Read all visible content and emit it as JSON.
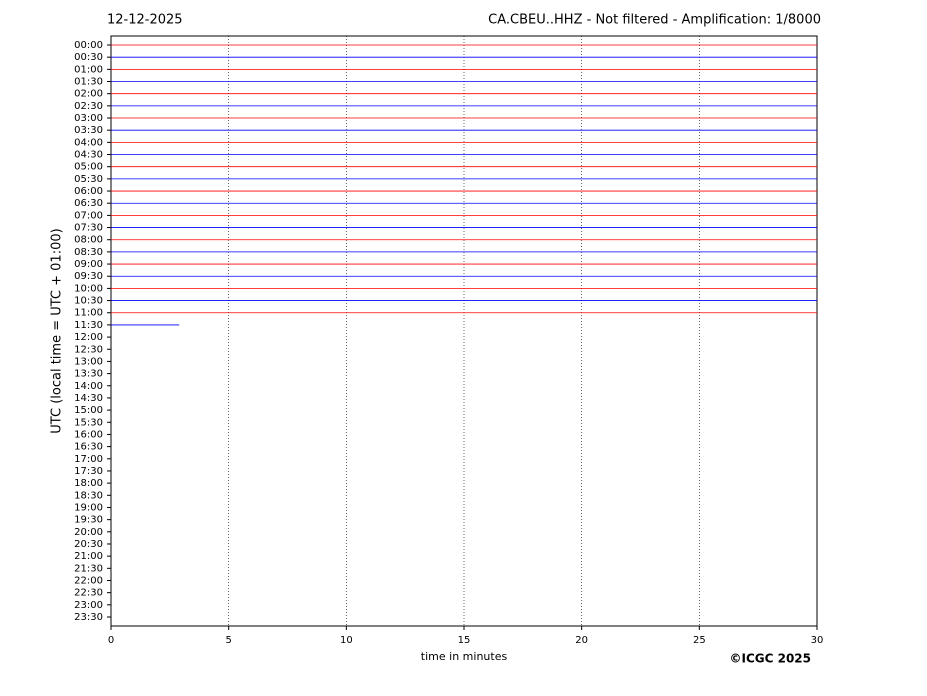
{
  "chart_data": {
    "type": "helicorder",
    "date": "12-12-2025",
    "title": "CA.CBEU..HHZ - Not filtered - Amplification: 1/8000",
    "xlabel": "time in minutes",
    "ylabel": "UTC (local time = UTC + 01:00)",
    "copyright": "©ICGC 2025",
    "xlim": [
      0,
      30
    ],
    "xticks": [
      0,
      5,
      10,
      15,
      20,
      25,
      30
    ],
    "grid": true,
    "categories": [
      "00:00",
      "00:30",
      "01:00",
      "01:30",
      "02:00",
      "02:30",
      "03:00",
      "03:30",
      "04:00",
      "04:30",
      "05:00",
      "05:30",
      "06:00",
      "06:30",
      "07:00",
      "07:30",
      "08:00",
      "08:30",
      "09:00",
      "09:30",
      "10:00",
      "10:30",
      "11:00",
      "11:30",
      "12:00",
      "12:30",
      "13:00",
      "13:30",
      "14:00",
      "14:30",
      "15:00",
      "15:30",
      "16:00",
      "16:30",
      "17:00",
      "17:30",
      "18:00",
      "18:30",
      "19:00",
      "19:30",
      "20:00",
      "20:30",
      "21:00",
      "21:30",
      "22:00",
      "22:30",
      "23:00",
      "23:30"
    ],
    "traces": [
      {
        "color": "#ff0000",
        "end": 30
      },
      {
        "color": "#0000ff",
        "end": 30
      },
      {
        "color": "#ff0000",
        "end": 30
      },
      {
        "color": "#0000ff",
        "end": 30
      },
      {
        "color": "#ff0000",
        "end": 30
      },
      {
        "color": "#0000ff",
        "end": 30
      },
      {
        "color": "#ff0000",
        "end": 30
      },
      {
        "color": "#0000ff",
        "end": 30
      },
      {
        "color": "#ff0000",
        "end": 30
      },
      {
        "color": "#0000ff",
        "end": 30
      },
      {
        "color": "#ff0000",
        "end": 30
      },
      {
        "color": "#0000ff",
        "end": 30
      },
      {
        "color": "#ff0000",
        "end": 30
      },
      {
        "color": "#0000ff",
        "end": 30
      },
      {
        "color": "#ff0000",
        "end": 30
      },
      {
        "color": "#0000ff",
        "end": 30
      },
      {
        "color": "#ff0000",
        "end": 30
      },
      {
        "color": "#0000ff",
        "end": 30
      },
      {
        "color": "#ff0000",
        "end": 30
      },
      {
        "color": "#0000ff",
        "end": 30
      },
      {
        "color": "#ff0000",
        "end": 30
      },
      {
        "color": "#0000ff",
        "end": 30
      },
      {
        "color": "#ff0000",
        "end": 30
      },
      {
        "color": "#0000ff",
        "end": 2.9
      }
    ]
  }
}
